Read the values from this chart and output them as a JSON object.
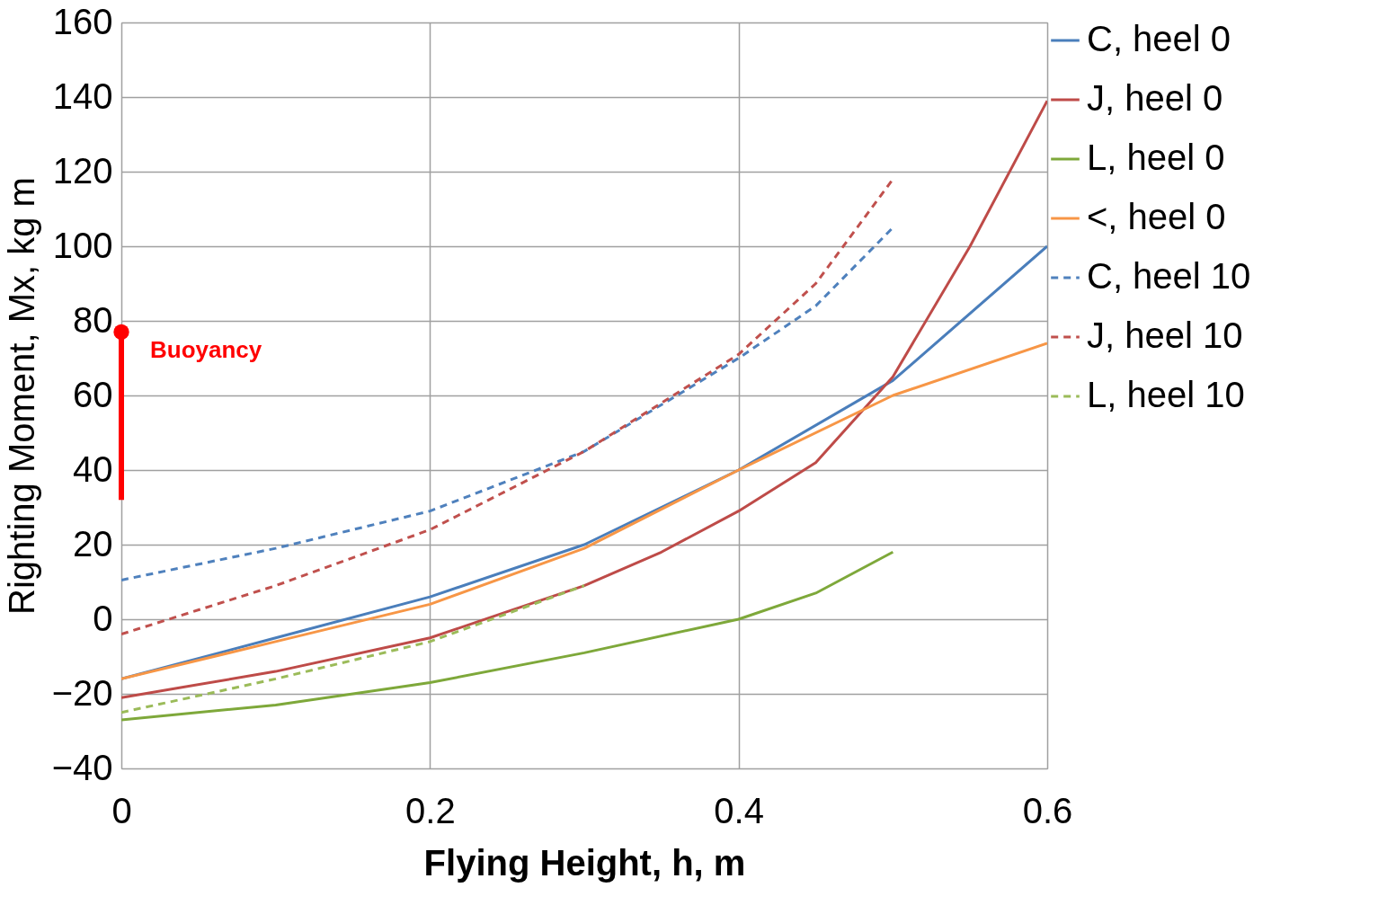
{
  "chart_data": {
    "type": "line",
    "xlabel": "Flying Height, h, m",
    "ylabel": "Righting  Moment, Mx, kg m",
    "xlim": [
      0,
      0.6
    ],
    "xticks": [
      0,
      0.2,
      0.4,
      0.6
    ],
    "ylim": [
      -40,
      160
    ],
    "yticks": [
      -40,
      -20,
      0,
      20,
      40,
      60,
      80,
      100,
      120,
      140,
      160
    ],
    "grid": true,
    "legend": "right",
    "marker": "none",
    "series": [
      {
        "name": "C, heel 0",
        "color": "#4a7ebb",
        "line_style": "solid",
        "x": [
          0,
          0.1,
          0.2,
          0.3,
          0.4,
          0.5,
          0.6
        ],
        "values": [
          -16,
          -5,
          6,
          20,
          40,
          64,
          100
        ]
      },
      {
        "name": "J, heel 0",
        "color": "#be4b48",
        "line_style": "solid",
        "x": [
          0,
          0.1,
          0.2,
          0.25,
          0.3,
          0.35,
          0.4,
          0.45,
          0.5,
          0.55,
          0.6
        ],
        "values": [
          -21,
          -14,
          -5,
          2,
          9,
          18,
          29,
          42,
          65,
          100,
          139
        ]
      },
      {
        "name": "L, heel 0",
        "color": "#7ea83a",
        "line_style": "solid",
        "x": [
          0,
          0.1,
          0.2,
          0.3,
          0.4,
          0.45,
          0.5
        ],
        "values": [
          -27,
          -23,
          -17,
          -9,
          0,
          7,
          18
        ]
      },
      {
        "name": "<, heel 0",
        "color": "#f79646",
        "line_style": "solid",
        "x": [
          0,
          0.1,
          0.2,
          0.3,
          0.4,
          0.5,
          0.6
        ],
        "values": [
          -16,
          -6,
          4,
          19,
          40,
          60,
          74
        ]
      },
      {
        "name": "C, heel 10",
        "color": "#4f81bd",
        "line_style": "dashed",
        "x": [
          0,
          0.1,
          0.2,
          0.3,
          0.4,
          0.45,
          0.5
        ],
        "values": [
          10.5,
          19,
          29,
          45,
          70,
          84,
          105
        ]
      },
      {
        "name": "J, heel 10",
        "color": "#c0504d",
        "line_style": "dashed",
        "x": [
          0,
          0.1,
          0.2,
          0.3,
          0.4,
          0.45,
          0.5
        ],
        "values": [
          -4,
          9,
          24,
          45,
          71,
          90,
          118
        ]
      },
      {
        "name": "L, heel 10",
        "color": "#9bbb59",
        "line_style": "dashed",
        "x": [
          0,
          0.1,
          0.2,
          0.3
        ],
        "values": [
          -25,
          -16,
          -6,
          9
        ]
      },
      {
        "name": "Buoyancy",
        "type": "scatter",
        "marker": "circle",
        "color": "#ff0000",
        "x": [
          0
        ],
        "values": [
          77
        ],
        "errors": [
          [
            32,
            77
          ]
        ]
      }
    ]
  }
}
